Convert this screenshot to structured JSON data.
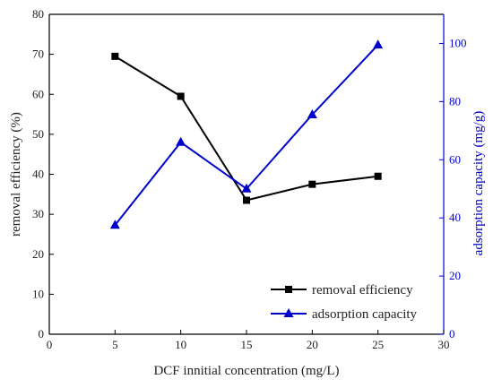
{
  "chart_data": {
    "type": "line",
    "title": "",
    "xlabel": "DCF innitial concentration (mg/L)",
    "ylabel": "removal efficiency (%)",
    "y2label": "adsorption capacity (mg/g)",
    "xlim": [
      0,
      30
    ],
    "ylim": [
      0,
      80
    ],
    "y2lim": [
      0,
      110
    ],
    "x_ticks": [
      "0",
      "5",
      "10",
      "15",
      "20",
      "25",
      "30"
    ],
    "y_ticks": [
      "0",
      "10",
      "20",
      "30",
      "40",
      "50",
      "60",
      "70",
      "80"
    ],
    "y2_ticks": [
      "0",
      "20",
      "40",
      "60",
      "80",
      "100"
    ],
    "grid": false,
    "legend_position": "bottom-right",
    "series": [
      {
        "name": "removal efficiency",
        "axis": "left",
        "color": "#000000",
        "marker": "square",
        "x": [
          5,
          10,
          15,
          20,
          25
        ],
        "y": [
          69.5,
          59.5,
          33.5,
          37.5,
          39.5
        ]
      },
      {
        "name": "adsorption capacity",
        "axis": "right",
        "color": "#0000cc",
        "marker": "triangle",
        "x": [
          5,
          10,
          15,
          20,
          25
        ],
        "y": [
          37.5,
          66,
          50,
          75.5,
          99.5
        ]
      }
    ]
  }
}
